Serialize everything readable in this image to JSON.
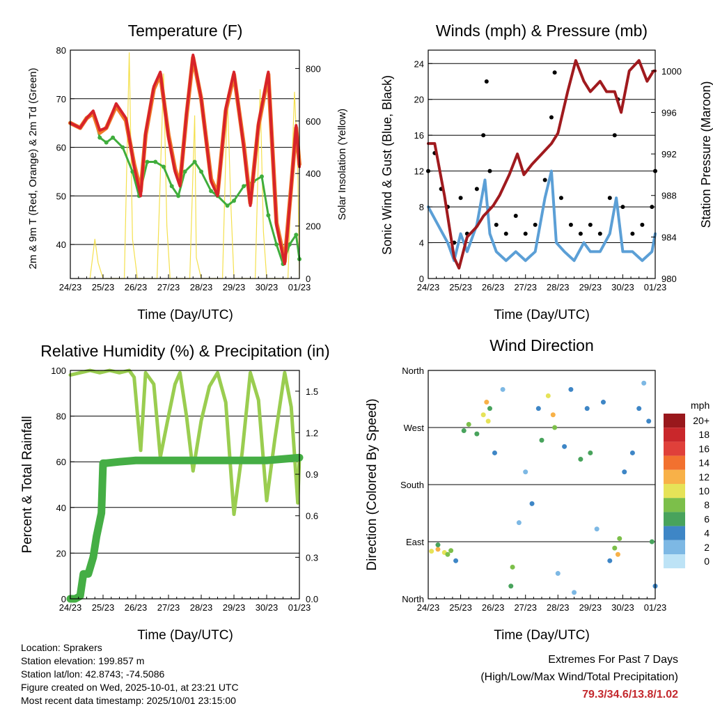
{
  "colors": {
    "temp_red": "#d7232a",
    "temp_orange": "#f07a28",
    "dewpoint_green": "#3fad3c",
    "solar_yellow": "#f4e04d",
    "wind_blue": "#5b9fd6",
    "gust_black": "#000000",
    "pressure_maroon": "#a01a1e",
    "rh_lightgreen": "#9acd50",
    "precip_green": "#45ae45",
    "extremes_red": "#c3282d"
  },
  "chart_data": [
    {
      "id": "temperature",
      "type": "line",
      "title": "Temperature (F)",
      "xlabel": "Time (Day/UTC)",
      "ylabel": "2m & 9m T (Red, Orange) & 2m Td (Green)",
      "ylabel_right": "Solar Insolation (Yellow)",
      "x_ticks": [
        "24/23",
        "25/23",
        "26/23",
        "27/23",
        "28/23",
        "29/23",
        "30/23",
        "01/23"
      ],
      "xlim": [
        0,
        7
      ],
      "ylim": [
        33,
        80
      ],
      "y_ticks": [
        40,
        50,
        60,
        70,
        80
      ],
      "y2lim": [
        0,
        870
      ],
      "y2_ticks": [
        0,
        200,
        400,
        600,
        800
      ],
      "gridlines_y": [
        40,
        50,
        60,
        70,
        80
      ],
      "series": [
        {
          "name": "2m T",
          "color_key": "temp_red",
          "x": [
            0,
            0.3,
            0.5,
            0.7,
            0.9,
            1.1,
            1.4,
            1.7,
            1.95,
            2.15,
            2.3,
            2.55,
            2.75,
            3.0,
            3.2,
            3.35,
            3.55,
            3.75,
            4.0,
            4.3,
            4.5,
            4.75,
            5.0,
            5.3,
            5.5,
            5.75,
            6.05,
            6.3,
            6.55,
            6.75,
            6.9,
            7.0
          ],
          "y": [
            65,
            64,
            66,
            67.5,
            63.5,
            64,
            69,
            66,
            56,
            50,
            63,
            72.5,
            75.5,
            62,
            55,
            52,
            67,
            79,
            70,
            53,
            50,
            68,
            75.5,
            60,
            48,
            65,
            75.5,
            44,
            36,
            52,
            64.5,
            56
          ]
        },
        {
          "name": "9m T",
          "color_key": "temp_orange",
          "x": [
            0,
            0.3,
            0.5,
            0.7,
            0.9,
            1.1,
            1.4,
            1.7,
            1.95,
            2.15,
            2.3,
            2.55,
            2.75,
            3.0,
            3.2,
            3.35,
            3.55,
            3.75,
            4.0,
            4.3,
            4.5,
            4.75,
            5.0,
            5.3,
            5.5,
            5.75,
            6.05,
            6.3,
            6.55,
            6.75,
            6.9,
            7.0
          ],
          "y": [
            65,
            64,
            66,
            67,
            63,
            64,
            68.5,
            65.5,
            56.5,
            51,
            62.5,
            72,
            75,
            62.5,
            55.5,
            52.5,
            66.5,
            78.5,
            70,
            53.5,
            50.5,
            67.5,
            75,
            60.5,
            48.5,
            64.5,
            75,
            44.5,
            36.5,
            52,
            64,
            56.5
          ]
        },
        {
          "name": "2m Td",
          "color_key": "dewpoint_green",
          "x": [
            0,
            0.3,
            0.5,
            0.7,
            0.9,
            1.1,
            1.3,
            1.6,
            1.9,
            2.1,
            2.35,
            2.6,
            2.85,
            3.1,
            3.3,
            3.5,
            3.8,
            4.0,
            4.3,
            4.5,
            4.8,
            5.0,
            5.3,
            5.6,
            5.85,
            6.05,
            6.3,
            6.5,
            6.7,
            6.9,
            7.0
          ],
          "y": [
            65,
            64,
            66,
            67,
            62,
            61,
            62,
            60,
            55,
            50,
            57,
            57,
            56,
            52,
            50,
            55,
            57,
            55,
            51,
            50,
            48,
            49,
            52,
            53,
            54,
            46,
            40,
            36,
            40,
            42,
            37
          ]
        },
        {
          "name": "Solar Insolation",
          "color_key": "solar_yellow",
          "axis": "right",
          "x": [
            0.6,
            0.75,
            0.85,
            1.0,
            1.65,
            1.8,
            1.9,
            2.05,
            2.65,
            2.85,
            2.95,
            3.05,
            3.65,
            3.8,
            3.85,
            4.0,
            4.65,
            4.8,
            4.9,
            5.0,
            5.65,
            5.8,
            5.9,
            6.0,
            6.65,
            6.85,
            6.95,
            7.0
          ],
          "y": [
            0,
            150,
            60,
            0,
            0,
            860,
            150,
            0,
            0,
            780,
            200,
            0,
            0,
            620,
            80,
            0,
            0,
            700,
            300,
            0,
            0,
            720,
            180,
            0,
            0,
            710,
            420,
            0
          ]
        }
      ]
    },
    {
      "id": "winds",
      "type": "scatter",
      "title": "Winds (mph) & Pressure (mb)",
      "xlabel": "Time (Day/UTC)",
      "ylabel": "Sonic Wind & Gust (Blue, Black)",
      "ylabel_right": "Station Pressure (Maroon)",
      "x_ticks": [
        "24/23",
        "25/23",
        "26/23",
        "27/23",
        "28/23",
        "29/23",
        "30/23",
        "01/23"
      ],
      "xlim": [
        0,
        7
      ],
      "ylim": [
        0,
        25.5
      ],
      "y_ticks": [
        0,
        4,
        8,
        12,
        16,
        20,
        24
      ],
      "y2lim": [
        980,
        1002
      ],
      "y2_ticks": [
        980,
        984,
        988,
        992,
        996,
        1000
      ],
      "gridlines_y": [
        4,
        8,
        12,
        16,
        20,
        24
      ],
      "series": [
        {
          "name": "Sonic Wind",
          "color_key": "wind_blue",
          "x": [
            0,
            0.3,
            0.6,
            0.8,
            1.0,
            1.2,
            1.5,
            1.75,
            1.9,
            2.1,
            2.4,
            2.7,
            3.0,
            3.3,
            3.6,
            3.8,
            3.95,
            4.2,
            4.5,
            4.8,
            5.0,
            5.3,
            5.6,
            5.8,
            6.0,
            6.3,
            6.6,
            6.9,
            7.0
          ],
          "y": [
            8,
            6,
            4,
            2,
            5,
            3,
            6,
            11,
            5,
            3,
            2,
            3,
            2,
            3,
            9,
            12,
            4,
            3,
            2,
            4,
            3,
            3,
            5,
            9,
            3,
            3,
            2,
            3,
            5
          ]
        },
        {
          "name": "Gust",
          "color_key": "gust_black",
          "x": [
            0,
            0.2,
            0.4,
            0.6,
            0.8,
            1.0,
            1.2,
            1.5,
            1.7,
            1.8,
            1.9,
            2.1,
            2.4,
            2.7,
            3.0,
            3.3,
            3.6,
            3.8,
            3.9,
            4.1,
            4.4,
            4.7,
            5.0,
            5.3,
            5.6,
            5.75,
            5.85,
            6.0,
            6.3,
            6.6,
            6.9,
            7.0
          ],
          "y": [
            12,
            14,
            10,
            8,
            4,
            9,
            5,
            10,
            16,
            22,
            12,
            6,
            5,
            7,
            5,
            6,
            11,
            18,
            23,
            9,
            6,
            5,
            6,
            5,
            9,
            16,
            20,
            8,
            5,
            6,
            8,
            12
          ]
        },
        {
          "name": "Station Pressure",
          "color_key": "pressure_maroon",
          "axis": "right",
          "x": [
            0,
            0.2,
            0.5,
            0.8,
            0.95,
            1.2,
            1.5,
            1.7,
            2.0,
            2.2,
            2.5,
            2.75,
            2.95,
            3.2,
            3.5,
            3.8,
            4.0,
            4.3,
            4.55,
            4.8,
            5.0,
            5.3,
            5.5,
            5.75,
            5.95,
            6.2,
            6.5,
            6.75,
            6.95,
            7.0
          ],
          "y": [
            993,
            993,
            988,
            982,
            981,
            984,
            985,
            986,
            987,
            988,
            990,
            992,
            990,
            991,
            992,
            993,
            994,
            998,
            1001,
            999,
            998,
            999,
            998,
            998,
            996,
            1000,
            1001,
            999,
            1000,
            1000
          ]
        }
      ]
    },
    {
      "id": "humidity",
      "type": "line",
      "title": "Relative Humidity (%) & Precipitation (in)",
      "xlabel": "Time (Day/UTC)",
      "ylabel": "Percent & Total Rainfall",
      "x_ticks": [
        "24/23",
        "25/23",
        "26/23",
        "27/23",
        "28/23",
        "29/23",
        "30/23",
        "01/23"
      ],
      "xlim": [
        0,
        7
      ],
      "ylim": [
        0,
        100
      ],
      "y_ticks": [
        0,
        20,
        40,
        60,
        80,
        100
      ],
      "y2lim": [
        0,
        1.65
      ],
      "y2_ticks": [
        0.0,
        0.3,
        0.6,
        0.9,
        1.2,
        1.5
      ],
      "y2_tick_labels": [
        "0.0",
        "0.3",
        "0.6",
        "0.9",
        "1.2",
        "1.5"
      ],
      "gridlines_y": [
        20,
        40,
        60,
        80,
        100
      ],
      "series": [
        {
          "name": "Relative Humidity",
          "color_key": "rh_lightgreen",
          "x": [
            0,
            0.3,
            0.6,
            0.9,
            1.2,
            1.5,
            1.8,
            1.95,
            2.15,
            2.3,
            2.55,
            2.75,
            3.0,
            3.2,
            3.35,
            3.55,
            3.75,
            4.0,
            4.25,
            4.5,
            4.75,
            5.0,
            5.25,
            5.5,
            5.75,
            6.0,
            6.25,
            6.55,
            6.75,
            6.95,
            7.0
          ],
          "y": [
            98,
            99,
            100,
            99,
            100,
            99,
            100,
            97,
            65,
            99,
            94,
            62,
            80,
            94,
            99,
            80,
            56,
            78,
            93,
            99,
            86,
            37,
            64,
            99,
            87,
            43,
            70,
            99,
            84,
            42,
            62
          ]
        },
        {
          "name": "Total Precipitation",
          "color_key": "precip_green",
          "axis": "right",
          "x": [
            0,
            0.15,
            0.3,
            0.4,
            0.55,
            0.7,
            0.8,
            0.95,
            1.0,
            1.1,
            1.5,
            2.0,
            3.0,
            4.0,
            5.0,
            6.0,
            7.0
          ],
          "y": [
            0,
            0,
            0.02,
            0.18,
            0.18,
            0.3,
            0.45,
            0.62,
            0.98,
            0.98,
            0.99,
            1.0,
            1.0,
            1.0,
            1.0,
            1.0,
            1.02
          ]
        }
      ]
    },
    {
      "id": "wind-direction",
      "type": "scatter",
      "title": "Wind Direction",
      "xlabel": "Time (Day/UTC)",
      "ylabel": "Direction (Colored By Speed)",
      "x_ticks": [
        "24/23",
        "25/23",
        "26/23",
        "27/23",
        "28/23",
        "29/23",
        "30/23",
        "01/23"
      ],
      "xlim": [
        0,
        7
      ],
      "ylim": [
        0,
        360
      ],
      "y_ticks": [
        0,
        90,
        180,
        270,
        360
      ],
      "y_tick_labels": [
        "North",
        "East",
        "South",
        "West",
        "North"
      ],
      "gridlines_y": [
        90,
        180,
        270
      ],
      "colorbar": {
        "title": "mph",
        "labels": [
          "20+",
          "18",
          "16",
          "14",
          "12",
          "10",
          "8",
          "6",
          "4",
          "2",
          "0"
        ],
        "colors": [
          "#99181c",
          "#c9272b",
          "#e0403a",
          "#f2712f",
          "#f8b148",
          "#e6e358",
          "#7cbf4a",
          "#48a35c",
          "#3e86c6",
          "#7db8e4",
          "#bde3f6"
        ]
      },
      "points": [
        {
          "t": 0.1,
          "dir": 75,
          "spd": 10
        },
        {
          "t": 0.3,
          "dir": 78,
          "spd": 11
        },
        {
          "t": 0.5,
          "dir": 73,
          "spd": 9
        },
        {
          "t": 0.7,
          "dir": 76,
          "spd": 7
        },
        {
          "t": 0.3,
          "dir": 85,
          "spd": 6
        },
        {
          "t": 0.6,
          "dir": 70,
          "spd": 8
        },
        {
          "t": 0.85,
          "dir": 60,
          "spd": 4
        },
        {
          "t": 1.1,
          "dir": 265,
          "spd": 6
        },
        {
          "t": 1.25,
          "dir": 275,
          "spd": 8
        },
        {
          "t": 1.5,
          "dir": 260,
          "spd": 5
        },
        {
          "t": 1.7,
          "dir": 290,
          "spd": 10
        },
        {
          "t": 1.8,
          "dir": 310,
          "spd": 12
        },
        {
          "t": 1.85,
          "dir": 280,
          "spd": 9
        },
        {
          "t": 1.9,
          "dir": 300,
          "spd": 6
        },
        {
          "t": 2.05,
          "dir": 230,
          "spd": 3
        },
        {
          "t": 2.3,
          "dir": 330,
          "spd": 2
        },
        {
          "t": 2.55,
          "dir": 20,
          "spd": 5
        },
        {
          "t": 2.6,
          "dir": 50,
          "spd": 7
        },
        {
          "t": 2.8,
          "dir": 120,
          "spd": 1
        },
        {
          "t": 3.0,
          "dir": 200,
          "spd": 2
        },
        {
          "t": 3.2,
          "dir": 150,
          "spd": 4
        },
        {
          "t": 3.4,
          "dir": 300,
          "spd": 3
        },
        {
          "t": 3.5,
          "dir": 250,
          "spd": 5
        },
        {
          "t": 3.7,
          "dir": 320,
          "spd": 10
        },
        {
          "t": 3.85,
          "dir": 290,
          "spd": 12
        },
        {
          "t": 3.9,
          "dir": 270,
          "spd": 8
        },
        {
          "t": 4.0,
          "dir": 40,
          "spd": 2
        },
        {
          "t": 4.2,
          "dir": 240,
          "spd": 3
        },
        {
          "t": 4.4,
          "dir": 330,
          "spd": 4
        },
        {
          "t": 4.5,
          "dir": 10,
          "spd": 1
        },
        {
          "t": 4.7,
          "dir": 220,
          "spd": 5
        },
        {
          "t": 4.9,
          "dir": 300,
          "spd": 3
        },
        {
          "t": 5.0,
          "dir": 230,
          "spd": 5
        },
        {
          "t": 5.2,
          "dir": 110,
          "spd": 2
        },
        {
          "t": 5.4,
          "dir": 310,
          "spd": 4
        },
        {
          "t": 5.6,
          "dir": 60,
          "spd": 3
        },
        {
          "t": 5.75,
          "dir": 80,
          "spd": 7
        },
        {
          "t": 5.85,
          "dir": 70,
          "spd": 12
        },
        {
          "t": 5.9,
          "dir": 95,
          "spd": 8
        },
        {
          "t": 6.05,
          "dir": 200,
          "spd": 3
        },
        {
          "t": 6.3,
          "dir": 230,
          "spd": 4
        },
        {
          "t": 6.5,
          "dir": 300,
          "spd": 3
        },
        {
          "t": 6.65,
          "dir": 340,
          "spd": 2
        },
        {
          "t": 6.8,
          "dir": 280,
          "spd": 4
        },
        {
          "t": 6.9,
          "dir": 90,
          "spd": 6
        },
        {
          "t": 7.0,
          "dir": 20,
          "spd": 4
        }
      ]
    }
  ],
  "footer": {
    "location": "Location: Sprakers",
    "elevation": "Station elevation: 199.857 m",
    "latlon": "Station lat/lon: 42.8743; -74.5086",
    "created": "Figure created on Wed, 2025-10-01, at 23:21 UTC",
    "recent": "Most recent data timestamp: 2025/10/01 23:15:00"
  },
  "extremes": {
    "title": "Extremes For Past 7 Days",
    "subtitle": "(High/Low/Max Wind/Total Precipitation)",
    "values": "79.3/34.6/13.8/1.02"
  }
}
